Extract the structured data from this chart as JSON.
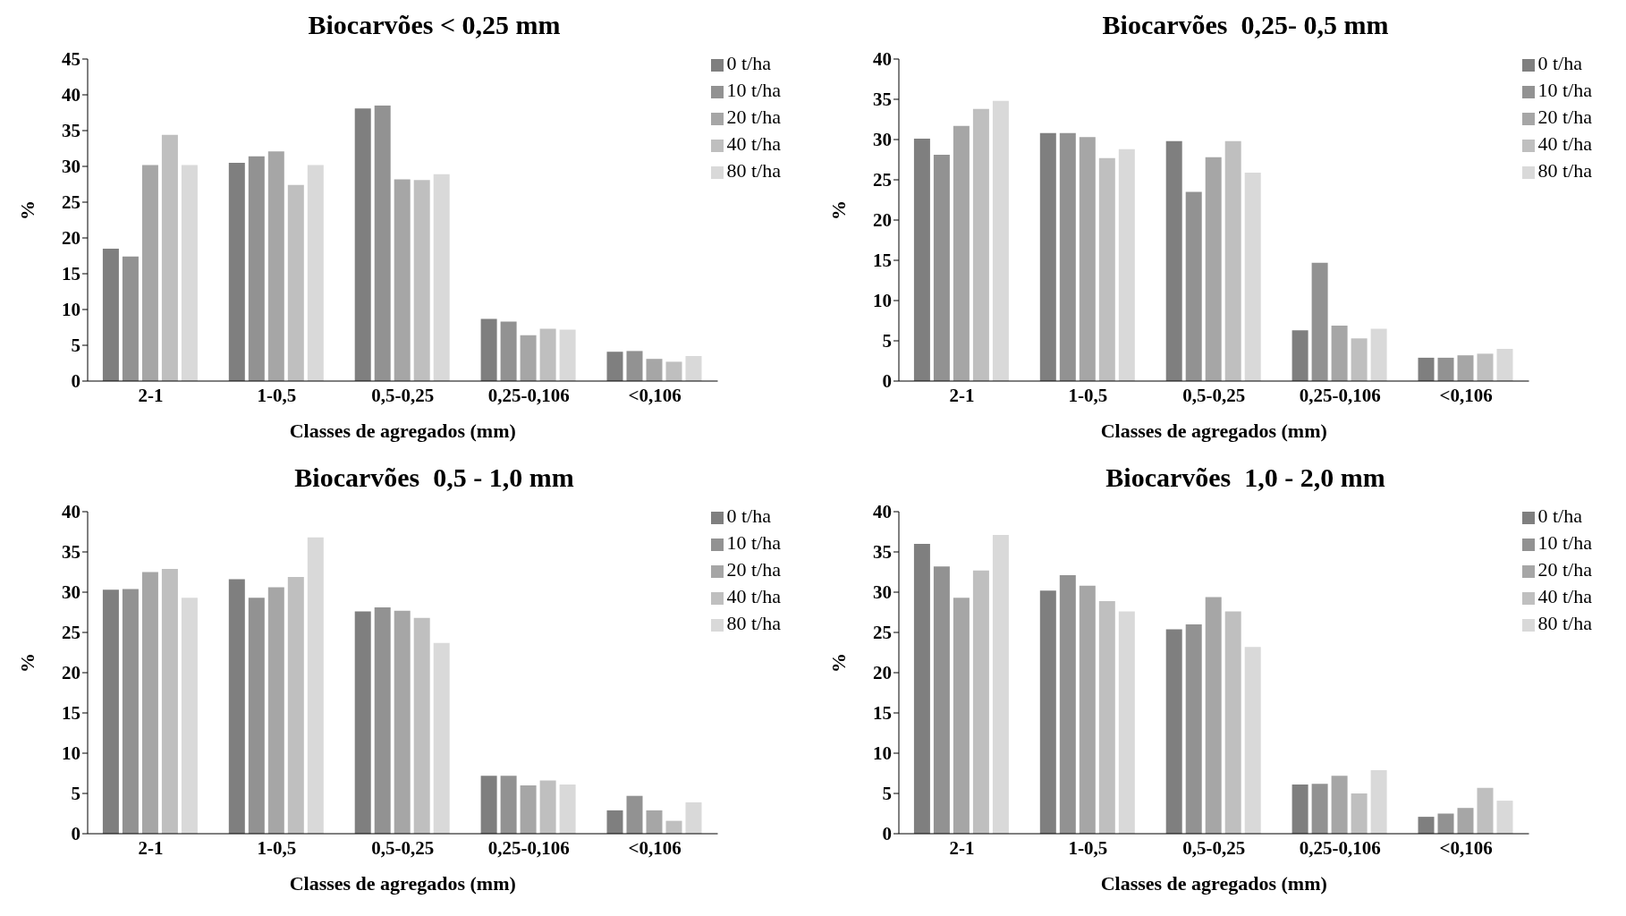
{
  "chart_data": [
    {
      "type": "bar",
      "title": "Biocarvões < 0,25 mm",
      "xlabel": "Classes de agregados (mm)",
      "ylabel": "%",
      "categories": [
        "2-1",
        "1-0,5",
        "0,5-0,25",
        "0,25-0,106",
        "<0,106"
      ],
      "ylim": [
        0,
        45
      ],
      "yticks": [
        0,
        5,
        10,
        15,
        20,
        25,
        30,
        35,
        40,
        45
      ],
      "legend": "top right",
      "series": [
        {
          "name": "0 t/ha",
          "color": "#7f7f7f",
          "values": [
            18.5,
            30.5,
            38.1,
            8.7,
            4.1
          ]
        },
        {
          "name": "10 t/ha",
          "color": "#929292",
          "values": [
            17.4,
            31.4,
            38.5,
            8.3,
            4.2
          ]
        },
        {
          "name": "20 t/ha",
          "color": "#a6a6a6",
          "values": [
            30.2,
            32.1,
            28.2,
            6.4,
            3.1
          ]
        },
        {
          "name": "40 t/ha",
          "color": "#bfbfbf",
          "values": [
            34.4,
            27.4,
            28.1,
            7.3,
            2.7
          ]
        },
        {
          "name": "80 t/ha",
          "color": "#d9d9d9",
          "values": [
            30.2,
            30.2,
            28.9,
            7.2,
            3.5
          ]
        }
      ]
    },
    {
      "type": "bar",
      "title": "Biocarvões  0,25- 0,5 mm",
      "xlabel": "Classes de agregados (mm)",
      "ylabel": "%",
      "categories": [
        "2-1",
        "1-0,5",
        "0,5-0,25",
        "0,25-0,106",
        "<0,106"
      ],
      "ylim": [
        0,
        40
      ],
      "yticks": [
        0,
        5,
        10,
        15,
        20,
        25,
        30,
        35,
        40
      ],
      "legend": "top right",
      "series": [
        {
          "name": "0 t/ha",
          "color": "#7f7f7f",
          "values": [
            30.1,
            30.8,
            29.8,
            6.3,
            2.9
          ]
        },
        {
          "name": "10 t/ha",
          "color": "#929292",
          "values": [
            28.1,
            30.8,
            23.5,
            14.7,
            2.9
          ]
        },
        {
          "name": "20 t/ha",
          "color": "#a6a6a6",
          "values": [
            31.7,
            30.3,
            27.8,
            6.9,
            3.2
          ]
        },
        {
          "name": "40 t/ha",
          "color": "#bfbfbf",
          "values": [
            33.8,
            27.7,
            29.8,
            5.3,
            3.4
          ]
        },
        {
          "name": "80 t/ha",
          "color": "#d9d9d9",
          "values": [
            34.8,
            28.8,
            25.9,
            6.5,
            4.0
          ]
        }
      ]
    },
    {
      "type": "bar",
      "title": "Biocarvões  0,5 - 1,0 mm",
      "xlabel": "Classes de agregados (mm)",
      "ylabel": "%",
      "categories": [
        "2-1",
        "1-0,5",
        "0,5-0,25",
        "0,25-0,106",
        "<0,106"
      ],
      "ylim": [
        0,
        40
      ],
      "yticks": [
        0,
        5,
        10,
        15,
        20,
        25,
        30,
        35,
        40
      ],
      "legend": "top right",
      "series": [
        {
          "name": "0 t/ha",
          "color": "#7f7f7f",
          "values": [
            30.3,
            31.6,
            27.6,
            7.2,
            2.9
          ]
        },
        {
          "name": "10 t/ha",
          "color": "#929292",
          "values": [
            30.4,
            29.3,
            28.1,
            7.2,
            4.7
          ]
        },
        {
          "name": "20 t/ha",
          "color": "#a6a6a6",
          "values": [
            32.5,
            30.6,
            27.7,
            6.0,
            2.9
          ]
        },
        {
          "name": "40 t/ha",
          "color": "#bfbfbf",
          "values": [
            32.9,
            31.9,
            26.8,
            6.6,
            1.6
          ]
        },
        {
          "name": "80 t/ha",
          "color": "#d9d9d9",
          "values": [
            29.3,
            36.8,
            23.7,
            6.1,
            3.9
          ]
        }
      ]
    },
    {
      "type": "bar",
      "title": "Biocarvões  1,0 - 2,0 mm",
      "xlabel": "Classes de agregados (mm)",
      "ylabel": "%",
      "categories": [
        "2-1",
        "1-0,5",
        "0,5-0,25",
        "0,25-0,106",
        "<0,106"
      ],
      "ylim": [
        0,
        40
      ],
      "yticks": [
        0,
        5,
        10,
        15,
        20,
        25,
        30,
        35,
        40
      ],
      "legend": "top right",
      "series": [
        {
          "name": "0 t/ha",
          "color": "#7f7f7f",
          "values": [
            36.0,
            30.2,
            25.4,
            6.1,
            2.1
          ]
        },
        {
          "name": "10 t/ha",
          "color": "#929292",
          "values": [
            33.2,
            32.1,
            26.0,
            6.2,
            2.5
          ]
        },
        {
          "name": "20 t/ha",
          "color": "#a6a6a6",
          "values": [
            29.3,
            30.8,
            29.4,
            7.2,
            3.2
          ]
        },
        {
          "name": "40 t/ha",
          "color": "#bfbfbf",
          "values": [
            32.7,
            28.9,
            27.6,
            5.0,
            5.7
          ]
        },
        {
          "name": "80 t/ha",
          "color": "#d9d9d9",
          "values": [
            37.1,
            27.6,
            23.2,
            7.9,
            4.1
          ]
        }
      ]
    }
  ]
}
